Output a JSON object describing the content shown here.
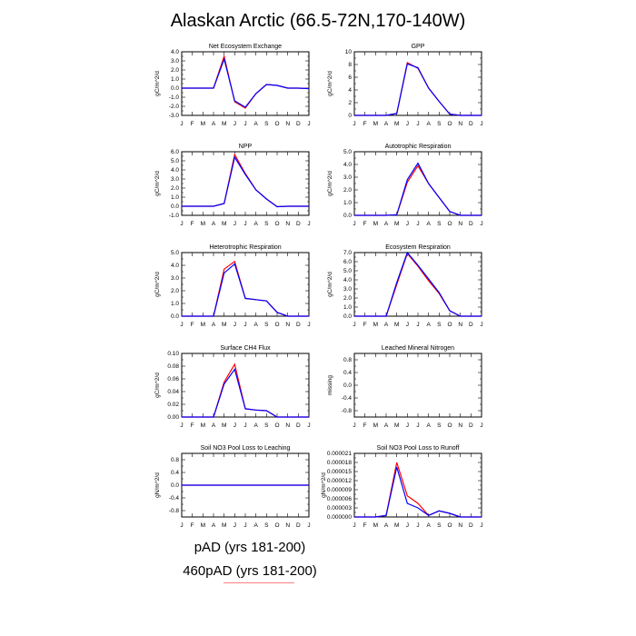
{
  "title": "Alaskan Arctic (66.5-72N,170-140W)",
  "series_colors": [
    "#ff0000",
    "#0000ff"
  ],
  "legend": {
    "entries": [
      {
        "label": "pAD (yrs 181-200)",
        "color": "#ff0000"
      },
      {
        "label": "460pAD (yrs 181-200)",
        "color": "#0000ff"
      }
    ]
  },
  "chart_data": [
    {
      "type": "line",
      "title": "Net Ecosystem Exchange",
      "ylabel": "gC/m^2/d",
      "categories": [
        "J",
        "F",
        "M",
        "A",
        "M",
        "J",
        "J",
        "A",
        "S",
        "O",
        "N",
        "D",
        "J"
      ],
      "ylim": [
        -3,
        4
      ],
      "yticks": [
        "4.0",
        "3.0",
        "2.0",
        "1.0",
        "0.0",
        "-1.0",
        "-2.0",
        "-3.0"
      ],
      "yticks_val": [
        4,
        3,
        2,
        1,
        0,
        -1,
        -2,
        -3
      ],
      "series": [
        {
          "values": [
            0,
            0,
            0,
            0,
            3.5,
            -1.5,
            -2.2,
            -0.6,
            0.4,
            0.3,
            0,
            0,
            -0.05
          ]
        },
        {
          "values": [
            0,
            0,
            0,
            0,
            3.2,
            -1.4,
            -2.1,
            -0.6,
            0.4,
            0.3,
            0,
            0,
            -0.05
          ]
        }
      ]
    },
    {
      "type": "line",
      "title": "GPP",
      "ylabel": "gC/m^2/d",
      "categories": [
        "J",
        "F",
        "M",
        "A",
        "M",
        "J",
        "J",
        "A",
        "S",
        "O",
        "N",
        "D",
        "J"
      ],
      "ylim": [
        0,
        10
      ],
      "yticks": [
        "10",
        "8",
        "6",
        "4",
        "2",
        "0"
      ],
      "yticks_val": [
        10,
        8,
        6,
        4,
        2,
        0
      ],
      "series": [
        {
          "values": [
            0,
            0,
            0,
            0,
            0.3,
            8.3,
            7.4,
            4.3,
            2.2,
            0.2,
            0,
            0,
            0
          ]
        },
        {
          "values": [
            0,
            0,
            0,
            0,
            0.3,
            8.1,
            7.5,
            4.3,
            2.2,
            0.2,
            0,
            0,
            0
          ]
        }
      ]
    },
    {
      "type": "line",
      "title": "NPP",
      "ylabel": "gC/m^2/d",
      "categories": [
        "J",
        "F",
        "M",
        "A",
        "M",
        "J",
        "J",
        "A",
        "S",
        "O",
        "N",
        "D",
        "J"
      ],
      "ylim": [
        -1,
        6
      ],
      "yticks": [
        "6.0",
        "5.0",
        "4.0",
        "3.0",
        "2.0",
        "1.0",
        "0.0",
        "-1.0"
      ],
      "yticks_val": [
        6,
        5,
        4,
        3,
        2,
        1,
        0,
        -1
      ],
      "series": [
        {
          "values": [
            0,
            0,
            0,
            0,
            0.3,
            5.7,
            3.6,
            1.8,
            0.8,
            -0.05,
            0,
            0,
            0
          ]
        },
        {
          "values": [
            0,
            0,
            0,
            0,
            0.3,
            5.4,
            3.5,
            1.8,
            0.8,
            -0.05,
            0,
            0,
            0
          ]
        }
      ]
    },
    {
      "type": "line",
      "title": "Autotrophic Respiration",
      "ylabel": "gC/m^2/d",
      "categories": [
        "J",
        "F",
        "M",
        "A",
        "M",
        "J",
        "J",
        "A",
        "S",
        "O",
        "N",
        "D",
        "J"
      ],
      "ylim": [
        0,
        5
      ],
      "yticks": [
        "5.0",
        "4.0",
        "3.0",
        "2.0",
        "1.0",
        "0.0"
      ],
      "yticks_val": [
        5,
        4,
        3,
        2,
        1,
        0
      ],
      "series": [
        {
          "values": [
            0,
            0,
            0,
            0,
            0.05,
            2.6,
            3.9,
            2.5,
            1.4,
            0.3,
            0,
            0,
            0
          ]
        },
        {
          "values": [
            0,
            0,
            0,
            0,
            0.05,
            2.8,
            4.1,
            2.5,
            1.4,
            0.3,
            0,
            0,
            0
          ]
        }
      ]
    },
    {
      "type": "line",
      "title": "Heterotrophic Respiration",
      "ylabel": "gC/m^2/d",
      "categories": [
        "J",
        "F",
        "M",
        "A",
        "M",
        "J",
        "J",
        "A",
        "S",
        "O",
        "N",
        "D",
        "J"
      ],
      "ylim": [
        0,
        5
      ],
      "yticks": [
        "5.0",
        "4.0",
        "3.0",
        "2.0",
        "1.0",
        "0.0"
      ],
      "yticks_val": [
        5,
        4,
        3,
        2,
        1,
        0
      ],
      "series": [
        {
          "values": [
            0,
            0,
            0,
            0,
            3.7,
            4.3,
            1.4,
            1.3,
            1.2,
            0.3,
            0,
            0,
            0
          ]
        },
        {
          "values": [
            0,
            0,
            0,
            0,
            3.4,
            4.1,
            1.4,
            1.3,
            1.2,
            0.3,
            0,
            0,
            0
          ]
        }
      ]
    },
    {
      "type": "line",
      "title": "Ecosystem Respiration",
      "ylabel": "gC/m^2/d",
      "categories": [
        "J",
        "F",
        "M",
        "A",
        "M",
        "J",
        "J",
        "A",
        "S",
        "O",
        "N",
        "D",
        "J"
      ],
      "ylim": [
        0,
        7
      ],
      "yticks": [
        "7.0",
        "6.0",
        "5.0",
        "4.0",
        "3.0",
        "2.0",
        "1.0",
        "0.0"
      ],
      "yticks_val": [
        7,
        6,
        5,
        4,
        3,
        2,
        1,
        0
      ],
      "series": [
        {
          "values": [
            0,
            0,
            0,
            0,
            3.5,
            6.9,
            5.5,
            3.9,
            2.5,
            0.6,
            0,
            0,
            0
          ]
        },
        {
          "values": [
            0,
            0,
            0,
            0,
            3.7,
            7.0,
            5.6,
            4.1,
            2.6,
            0.6,
            0,
            0,
            0
          ]
        }
      ]
    },
    {
      "type": "line",
      "title": "Surface CH4 Flux",
      "ylabel": "gC/m^2/d",
      "categories": [
        "J",
        "F",
        "M",
        "A",
        "M",
        "J",
        "J",
        "A",
        "S",
        "O",
        "N",
        "D",
        "J"
      ],
      "ylim": [
        0,
        0.1
      ],
      "yticks": [
        "0.10",
        "0.08",
        "0.06",
        "0.04",
        "0.02",
        "0.00"
      ],
      "yticks_val": [
        0.1,
        0.08,
        0.06,
        0.04,
        0.02,
        0
      ],
      "series": [
        {
          "values": [
            0,
            0,
            0,
            0,
            0.055,
            0.083,
            0.013,
            0.011,
            0.01,
            0.0,
            0,
            0,
            0
          ]
        },
        {
          "values": [
            0,
            0,
            0,
            0,
            0.052,
            0.075,
            0.013,
            0.011,
            0.01,
            0.0,
            0,
            0,
            0
          ]
        }
      ]
    },
    {
      "type": "line",
      "title": "Leached Mineral Nitrogen",
      "ylabel": "missing",
      "categories": [
        "J",
        "F",
        "M",
        "A",
        "M",
        "J",
        "J",
        "A",
        "S",
        "O",
        "N",
        "D",
        "J"
      ],
      "ylim": [
        -1,
        1
      ],
      "yticks": [
        "0.8",
        "0.4",
        "0.0",
        "-0.4",
        "-0.8"
      ],
      "yticks_val": [
        0.8,
        0.4,
        0,
        -0.4,
        -0.8
      ],
      "series": []
    },
    {
      "type": "line",
      "title": "Soil NO3 Pool Loss to Leaching",
      "ylabel": "gN/m^2/d",
      "categories": [
        "J",
        "F",
        "M",
        "A",
        "M",
        "J",
        "J",
        "A",
        "S",
        "O",
        "N",
        "D",
        "J"
      ],
      "ylim": [
        -1,
        1
      ],
      "yticks": [
        "0.8",
        "0.4",
        "0.0",
        "-0.4",
        "-0.8"
      ],
      "yticks_val": [
        0.8,
        0.4,
        0,
        -0.4,
        -0.8
      ],
      "series": [
        {
          "values": [
            0,
            0,
            0,
            0,
            0,
            0,
            0,
            0,
            0,
            0,
            0,
            0,
            0
          ]
        },
        {
          "values": [
            0,
            0,
            0,
            0,
            0,
            0,
            0,
            0,
            0,
            0,
            0,
            0,
            0
          ]
        }
      ]
    },
    {
      "type": "line",
      "title": "Soil NO3 Pool Loss to Runoff",
      "ylabel": "gN/m^2/d",
      "categories": [
        "J",
        "F",
        "M",
        "A",
        "M",
        "J",
        "J",
        "A",
        "S",
        "O",
        "N",
        "D",
        "J"
      ],
      "ylim": [
        0,
        2.1e-05
      ],
      "yticks": [
        "0.000021",
        "0.000018",
        "0.000015",
        "0.000012",
        "0.000009",
        "0.000006",
        "0.000003",
        "0.000000"
      ],
      "yticks_val": [
        2.1e-05,
        1.8e-05,
        1.5e-05,
        1.2e-05,
        9e-06,
        6e-06,
        3e-06,
        0
      ],
      "series": [
        {
          "values": [
            0,
            0,
            0,
            5e-07,
            1.8e-05,
            7e-06,
            4.5e-06,
            5e-07,
            2e-06,
            1.2e-06,
            0,
            0,
            0
          ]
        },
        {
          "values": [
            0,
            0,
            0,
            5e-07,
            1.65e-05,
            4.5e-06,
            3e-06,
            5e-07,
            2e-06,
            1.2e-06,
            0,
            0,
            0
          ]
        }
      ]
    }
  ]
}
